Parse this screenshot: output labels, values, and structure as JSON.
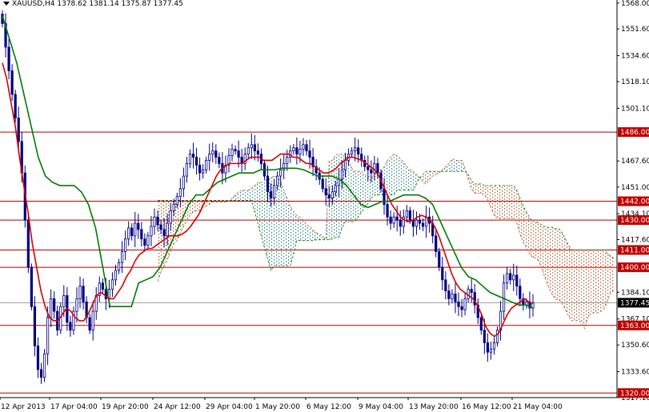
{
  "header": {
    "symbol": "XAUUSD,H4",
    "open": "1378.62",
    "high": "1381.14",
    "low": "1375.87",
    "close": "1377.45"
  },
  "colors": {
    "candle": "#00007f",
    "tenkan": "#d40000",
    "kijun": "#007a00",
    "cloud_bear": "#b0643a",
    "cloud_bull": "#3a8a8a",
    "level_line": "#b00000",
    "level_label_bg": "#c00000",
    "price_label_bg": "#000000",
    "grid": "#000000"
  },
  "chart_data": {
    "type": "candlestick",
    "instrument": "XAUUSD",
    "timeframe": "H4",
    "ylim": [
      1317.1,
      1570
    ],
    "y_ticks": [
      "1568.00",
      "1551.60",
      "1534.60",
      "1518.10",
      "1501.10",
      "1467.60",
      "1451.00",
      "1434.10",
      "1417.60",
      "1384.10",
      "1367.10",
      "1350.60",
      "1333.60",
      "1317.10"
    ],
    "x_ticks": [
      "12 Apr 2013",
      "17 Apr 04:00",
      "19 Apr 20:00",
      "24 Apr 12:00",
      "29 Apr 04:00",
      "1 May 20:00",
      "6 May 12:00",
      "9 May 04:00",
      "13 May 20:00",
      "16 May 12:00",
      "21 May 04:00"
    ],
    "levels": [
      1486.0,
      1442.0,
      1430.0,
      1411.0,
      1400.0,
      1363.0,
      1320.0
    ],
    "level_labels": [
      "1486.00",
      "1442.00",
      "1430.00",
      "1411.00",
      "1400.00",
      "1363.00",
      "1320.00"
    ],
    "current_price": 1377.45,
    "current_price_label": "1377.45",
    "closes": [
      1555,
      1540,
      1525,
      1510,
      1495,
      1480,
      1460,
      1430,
      1400,
      1375,
      1350,
      1335,
      1330,
      1345,
      1368,
      1380,
      1372,
      1360,
      1375,
      1382,
      1365,
      1360,
      1372,
      1380,
      1388,
      1378,
      1368,
      1360,
      1372,
      1382,
      1390,
      1386,
      1380,
      1386,
      1392,
      1398,
      1403,
      1410,
      1418,
      1425,
      1420,
      1428,
      1424,
      1418,
      1414,
      1420,
      1426,
      1432,
      1427,
      1424,
      1420,
      1428,
      1436,
      1440,
      1445,
      1450,
      1458,
      1466,
      1472,
      1470,
      1465,
      1460,
      1462,
      1468,
      1472,
      1474,
      1470,
      1466,
      1460,
      1465,
      1471,
      1475,
      1474,
      1470,
      1466,
      1472,
      1476,
      1478,
      1474,
      1472,
      1466,
      1458,
      1448,
      1444,
      1452,
      1458,
      1462,
      1466,
      1470,
      1474,
      1476,
      1472,
      1475,
      1478,
      1474,
      1470,
      1464,
      1460,
      1456,
      1450,
      1446,
      1444,
      1448,
      1452,
      1456,
      1462,
      1468,
      1472,
      1474,
      1476,
      1472,
      1468,
      1464,
      1462,
      1460,
      1466,
      1460,
      1450,
      1440,
      1432,
      1428,
      1432,
      1430,
      1426,
      1432,
      1436,
      1430,
      1426,
      1430,
      1428,
      1426,
      1432,
      1428,
      1420,
      1410,
      1400,
      1392,
      1385,
      1380,
      1383,
      1378,
      1375,
      1373,
      1380,
      1386,
      1384,
      1376,
      1368,
      1360,
      1352,
      1346,
      1348,
      1352,
      1360,
      1372,
      1390,
      1396,
      1392,
      1395,
      1388,
      1380,
      1376,
      1378,
      1374,
      1377.45
    ],
    "series": [
      {
        "name": "tenkan",
        "values": [
          1530,
          1520,
          1505,
          1490,
          1470,
          1452,
          1435,
          1415,
          1400,
          1385,
          1375,
          1368,
          1366,
          1366,
          1370,
          1374,
          1372,
          1368,
          1366,
          1366,
          1370,
          1376,
          1382,
          1384,
          1382,
          1380,
          1380,
          1384,
          1388,
          1394,
          1398,
          1404,
          1408,
          1410,
          1412,
          1412,
          1414,
          1416,
          1418,
          1420,
          1420,
          1420,
          1421,
          1423,
          1426,
          1430,
          1434,
          1440,
          1446,
          1452,
          1458,
          1462,
          1464,
          1466,
          1466,
          1466,
          1466,
          1468,
          1470,
          1470,
          1470,
          1468,
          1468,
          1468,
          1470,
          1472,
          1472,
          1472,
          1470,
          1470,
          1468,
          1466,
          1466,
          1464,
          1462,
          1460,
          1460,
          1461,
          1463,
          1466,
          1468,
          1470,
          1470,
          1469,
          1468,
          1466,
          1464,
          1462,
          1458,
          1452,
          1446,
          1440,
          1436,
          1432,
          1430,
          1429,
          1430,
          1432,
          1433,
          1432,
          1430,
          1426,
          1420,
          1412,
          1404,
          1396,
          1390,
          1386,
          1384,
          1382,
          1380,
          1376,
          1370,
          1362,
          1358,
          1356,
          1358,
          1364,
          1370,
          1374,
          1376,
          1378,
          1380,
          1378,
          1377
        ]
      },
      {
        "name": "kijun",
        "values": [
          1560,
          1545,
          1530,
          1510,
          1490,
          1470,
          1458,
          1454,
          1452,
          1452,
          1452,
          1448,
          1440,
          1425,
          1400,
          1375,
          1375,
          1375,
          1375,
          1390,
          1392,
          1394,
          1400,
          1410,
          1420,
          1430,
          1440,
          1446,
          1446,
          1450,
          1454,
          1456,
          1458,
          1460,
          1460,
          1460,
          1462,
          1462,
          1462,
          1463,
          1463,
          1463,
          1462,
          1460,
          1458,
          1458,
          1458,
          1456,
          1452,
          1446,
          1440,
          1438,
          1440,
          1442,
          1442,
          1444,
          1446,
          1446,
          1446,
          1444,
          1440,
          1430,
          1420,
          1410,
          1400,
          1394,
          1392,
          1388,
          1384,
          1382,
          1380,
          1378,
          1376,
          1376,
          1374
        ]
      }
    ]
  }
}
